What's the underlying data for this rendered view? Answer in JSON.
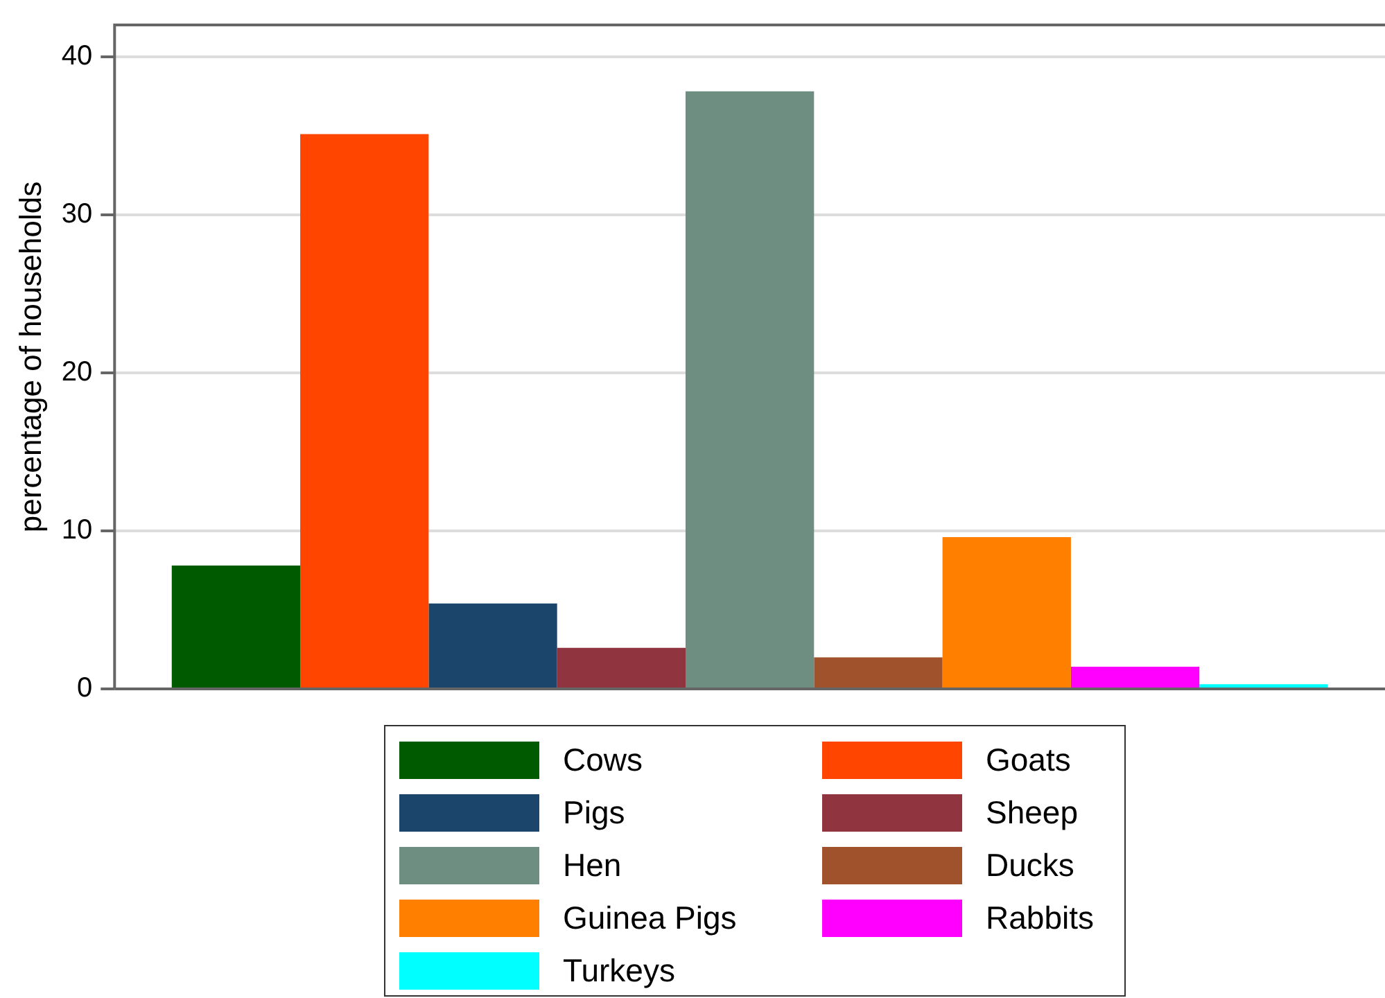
{
  "chart_data": {
    "type": "bar",
    "ylabel": "percentage of households",
    "categories": [
      null
    ],
    "series": [
      {
        "name": "Cows",
        "color": "#005a00",
        "values": [
          7.8
        ]
      },
      {
        "name": "Goats",
        "color": "#ff4500",
        "values": [
          35.1
        ]
      },
      {
        "name": "Pigs",
        "color": "#1c456b",
        "values": [
          5.4
        ]
      },
      {
        "name": "Sheep",
        "color": "#90353f",
        "values": [
          2.6
        ]
      },
      {
        "name": "Hen",
        "color": "#6e8e82",
        "values": [
          37.8
        ]
      },
      {
        "name": "Ducks",
        "color": "#a0522d",
        "values": [
          2.0
        ]
      },
      {
        "name": "Guinea Pigs",
        "color": "#ff7f00",
        "values": [
          9.6
        ]
      },
      {
        "name": "Rabbits",
        "color": "#ff00ff",
        "values": [
          1.4
        ]
      },
      {
        "name": "Turkeys",
        "color": "#00ffff",
        "values": [
          0.3
        ]
      }
    ],
    "ylim": [
      0,
      42
    ],
    "yticks": [
      0,
      10,
      20,
      30,
      40
    ],
    "grid": "y",
    "legend": "bottom"
  }
}
